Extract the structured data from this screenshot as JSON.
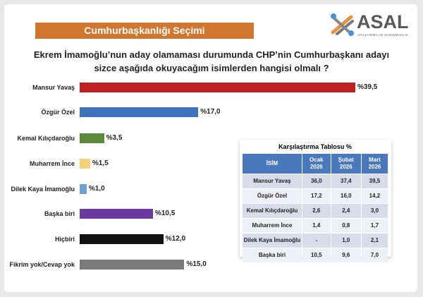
{
  "header": {
    "title": "Cumhurbaşkanlığı Seçimi",
    "logo_text": "ASAL",
    "logo_subtitle": "ARAŞTIRMA VE DANIŞMANLIK"
  },
  "chart_data": {
    "type": "bar",
    "orientation": "horizontal",
    "title": "Ekrem İmamoğlu’nun aday olamaması durumunda CHP’nin Cumhurbaşkanı adayı sizce aşağıda okuyacağım isimlerden hangisi olmalı ?",
    "categories": [
      "Mansur Yavaş",
      "Özgür Özel",
      "Kemal Kılıçdaroğlu",
      "Muharrem İnce",
      "Dilek Kaya İmamoğlu",
      "Başka biri",
      "Hiçbiri",
      "Fikrim yok/Cevap yok"
    ],
    "values": [
      39.5,
      17.0,
      3.5,
      1.5,
      1.0,
      10.5,
      12.0,
      15.0
    ],
    "labels": [
      "%39,5",
      "%17,0",
      "%3,5",
      "%1,5",
      "%1,0",
      "%10,5",
      "%12,0",
      "%15,0"
    ],
    "colors": [
      "#c0201f",
      "#3f74bd",
      "#5b8a3a",
      "#f5d27a",
      "#6a9fd8",
      "#6a3aa0",
      "#111111",
      "#7a7a7a"
    ],
    "xlim": [
      0,
      40
    ]
  },
  "table": {
    "title": "Karşılaştırma Tablosu %",
    "headers": [
      "İSİM",
      "Ocak 2026",
      "Şubat 2026",
      "Mart 2026"
    ],
    "rows": [
      [
        "Mansur Yavaş",
        "36,0",
        "37,4",
        "39,5"
      ],
      [
        "Özgür Özel",
        "17,2",
        "16,0",
        "14,2"
      ],
      [
        "Kemal Kılıçdaroğlu",
        "2,6",
        "2,4",
        "3,0"
      ],
      [
        "Muharrem İnce",
        "1,4",
        "0,8",
        "1,7"
      ],
      [
        "Dilek Kaya İmamoğlu",
        "-",
        "1,0",
        "2,1"
      ],
      [
        "Başka biri",
        "10,5",
        "9,6",
        "7,0"
      ]
    ]
  }
}
